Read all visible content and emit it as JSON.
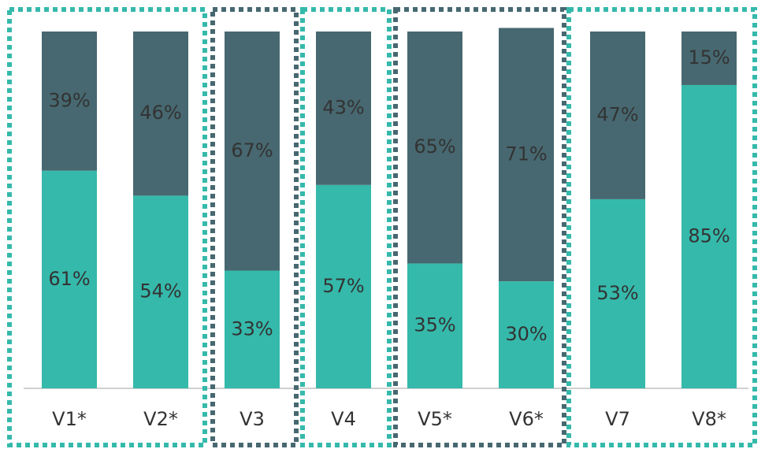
{
  "chart_data": {
    "type": "stacked_bar",
    "categories": [
      "V1*",
      "V2*",
      "V3",
      "V4",
      "V5*",
      "V6*",
      "V7",
      "V8*"
    ],
    "series": [
      {
        "color": "#35b9ab",
        "values": [
          61,
          54,
          33,
          57,
          35,
          30,
          53,
          85
        ],
        "value_labels": [
          "61%",
          "54%",
          "33%",
          "57%",
          "35%",
          "30%",
          "53%",
          "85%"
        ]
      },
      {
        "color": "#476870",
        "values": [
          39,
          46,
          67,
          43,
          65,
          71,
          47,
          15
        ],
        "value_labels": [
          "39%",
          "46%",
          "67%",
          "43%",
          "65%",
          "71%",
          "47%",
          "15%"
        ]
      }
    ],
    "ylim": [
      0,
      100
    ]
  }
}
